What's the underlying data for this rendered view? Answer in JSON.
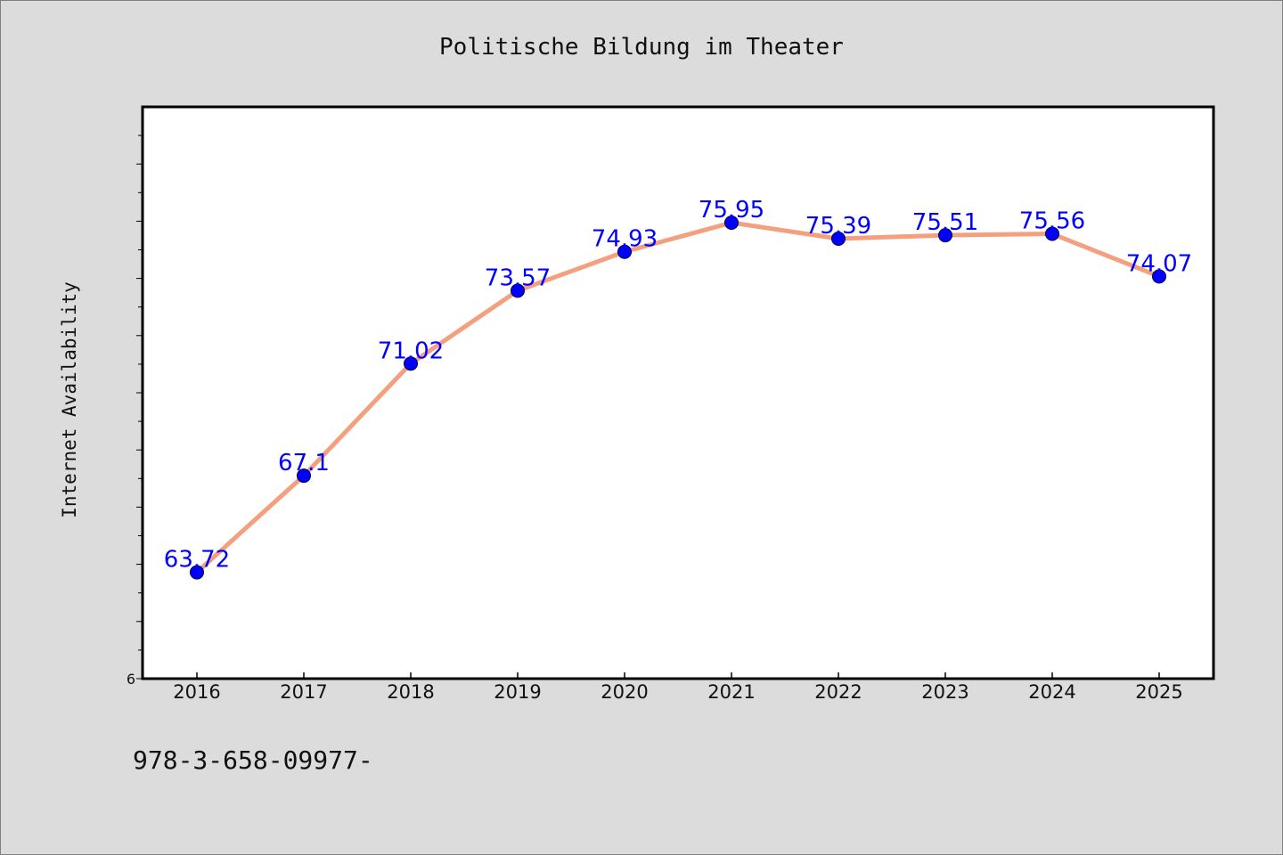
{
  "chart_data": {
    "type": "line",
    "title": "Politische Bildung im Theater",
    "xlabel": "",
    "ylabel": "Internet Availability",
    "categories": [
      "2016",
      "2017",
      "2018",
      "2019",
      "2020",
      "2021",
      "2022",
      "2023",
      "2024",
      "2025"
    ],
    "values": [
      63.72,
      67.1,
      71.02,
      73.57,
      74.93,
      75.95,
      75.39,
      75.51,
      75.56,
      74.07
    ],
    "data_labels": [
      "63.72",
      "67.1",
      "71.02",
      "73.57",
      "74.93",
      "75.95",
      "75.39",
      "75.51",
      "75.56",
      "74.07"
    ],
    "ylim": [
      60,
      80
    ],
    "y_tick_labels": [
      "6"
    ],
    "grid": false,
    "line_color": "#f4a07f",
    "marker_color": "#0000ff",
    "label_color": "#0000ff"
  },
  "footer_text": "978-3-658-09977-"
}
